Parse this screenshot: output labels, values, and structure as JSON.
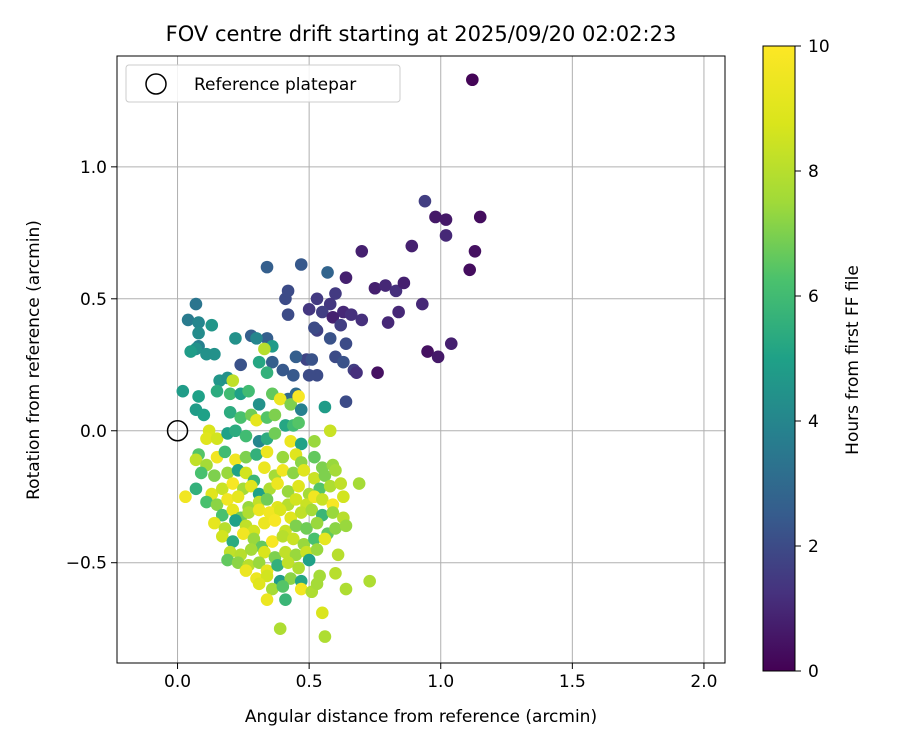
{
  "chart_data": {
    "type": "scatter",
    "title": "FOV centre drift starting at 2025/09/20 02:02:23",
    "xlabel": "Angular distance from reference (arcmin)",
    "ylabel": "Rotation from reference (arcmin)",
    "xlim": [
      -0.23,
      2.08
    ],
    "ylim": [
      -0.88,
      1.42
    ],
    "xticks": [
      0.0,
      0.5,
      1.0,
      1.5,
      2.0
    ],
    "xtick_labels": [
      "0.0",
      "0.5",
      "1.0",
      "1.5",
      "2.0"
    ],
    "yticks": [
      -0.5,
      0.0,
      0.5,
      1.0
    ],
    "ytick_labels": [
      "−0.5",
      "0.0",
      "0.5",
      "1.0"
    ],
    "grid": true,
    "legend": {
      "position": "upper-left",
      "entries": [
        {
          "label": "Reference platepar",
          "marker": "open-circle",
          "x": 0.0,
          "y": 0.0
        }
      ]
    },
    "colorbar": {
      "label": "Hours from first FF file",
      "min": 0,
      "max": 10,
      "ticks": [
        0,
        2,
        4,
        6,
        8,
        10
      ],
      "tick_labels": [
        "0",
        "2",
        "4",
        "6",
        "8",
        "10"
      ],
      "colormap": "viridis"
    },
    "points": [
      [
        1.12,
        1.33,
        0.1
      ],
      [
        1.15,
        0.81,
        0.3
      ],
      [
        0.98,
        0.81,
        0.6
      ],
      [
        1.02,
        0.8,
        0.6
      ],
      [
        0.94,
        0.87,
        1.6
      ],
      [
        1.02,
        0.74,
        1.0
      ],
      [
        1.13,
        0.68,
        0.4
      ],
      [
        0.7,
        0.68,
        0.8
      ],
      [
        0.89,
        0.7,
        0.8
      ],
      [
        1.11,
        0.61,
        0.3
      ],
      [
        0.64,
        0.58,
        0.8
      ],
      [
        0.57,
        0.6,
        2.8
      ],
      [
        0.47,
        0.63,
        2.4
      ],
      [
        0.34,
        0.62,
        2.6
      ],
      [
        0.75,
        0.54,
        0.8
      ],
      [
        0.79,
        0.55,
        1.0
      ],
      [
        0.83,
        0.53,
        1.2
      ],
      [
        0.86,
        0.56,
        0.8
      ],
      [
        0.93,
        0.48,
        1.0
      ],
      [
        0.6,
        0.52,
        1.5
      ],
      [
        0.53,
        0.5,
        1.5
      ],
      [
        0.41,
        0.5,
        2.0
      ],
      [
        0.42,
        0.53,
        2.0
      ],
      [
        0.58,
        0.48,
        1.4
      ],
      [
        0.63,
        0.45,
        1.0
      ],
      [
        0.66,
        0.44,
        1.2
      ],
      [
        0.55,
        0.45,
        1.6
      ],
      [
        0.5,
        0.46,
        1.4
      ],
      [
        0.59,
        0.43,
        0.8
      ],
      [
        0.7,
        0.42,
        1.2
      ],
      [
        0.84,
        0.45,
        1.0
      ],
      [
        0.8,
        0.41,
        1.0
      ],
      [
        0.62,
        0.4,
        1.6
      ],
      [
        0.42,
        0.44,
        2.0
      ],
      [
        0.53,
        0.38,
        1.7
      ],
      [
        0.52,
        0.39,
        2.0
      ],
      [
        0.58,
        0.35,
        2.2
      ],
      [
        0.64,
        0.33,
        2.0
      ],
      [
        0.95,
        0.3,
        0.4
      ],
      [
        0.99,
        0.28,
        0.6
      ],
      [
        1.04,
        0.33,
        0.8
      ],
      [
        0.76,
        0.22,
        0.4
      ],
      [
        0.67,
        0.23,
        1.6
      ],
      [
        0.68,
        0.22,
        1.2
      ],
      [
        0.6,
        0.28,
        2.0
      ],
      [
        0.63,
        0.26,
        2.2
      ],
      [
        0.53,
        0.21,
        2.0
      ],
      [
        0.5,
        0.21,
        2.0
      ],
      [
        0.49,
        0.27,
        1.8
      ],
      [
        0.51,
        0.27,
        2.2
      ],
      [
        0.45,
        0.28,
        2.6
      ],
      [
        0.4,
        0.23,
        2.4
      ],
      [
        0.36,
        0.26,
        2.6
      ],
      [
        0.34,
        0.35,
        2.6
      ],
      [
        0.28,
        0.36,
        2.6
      ],
      [
        0.24,
        0.25,
        2.2
      ],
      [
        0.64,
        0.11,
        2.0
      ],
      [
        0.56,
        0.09,
        4.8
      ],
      [
        0.44,
        0.21,
        2.4
      ],
      [
        0.45,
        0.14,
        3.0
      ],
      [
        0.42,
        0.12,
        3.0
      ],
      [
        0.07,
        0.48,
        3.4
      ],
      [
        0.04,
        0.42,
        3.6
      ],
      [
        0.08,
        0.41,
        4.0
      ],
      [
        0.08,
        0.37,
        4.2
      ],
      [
        0.13,
        0.4,
        4.6
      ],
      [
        0.08,
        0.32,
        3.8
      ],
      [
        0.07,
        0.31,
        4.4
      ],
      [
        0.11,
        0.29,
        4.4
      ],
      [
        0.14,
        0.29,
        4.4
      ],
      [
        0.05,
        0.3,
        4.8
      ],
      [
        0.22,
        0.35,
        4.4
      ],
      [
        0.3,
        0.35,
        4.0
      ],
      [
        0.36,
        0.32,
        4.8
      ],
      [
        0.31,
        0.26,
        5.2
      ],
      [
        0.33,
        0.31,
        8.0
      ],
      [
        0.34,
        0.22,
        5.6
      ],
      [
        0.02,
        0.15,
        4.8
      ],
      [
        0.08,
        0.13,
        5.0
      ],
      [
        0.16,
        0.19,
        4.6
      ],
      [
        0.19,
        0.2,
        4.4
      ],
      [
        0.21,
        0.19,
        8.2
      ],
      [
        0.15,
        0.15,
        5.4
      ],
      [
        0.2,
        0.14,
        6.0
      ],
      [
        0.24,
        0.14,
        5.0
      ],
      [
        0.27,
        0.15,
        6.0
      ],
      [
        0.31,
        0.1,
        4.4
      ],
      [
        0.36,
        0.14,
        6.6
      ],
      [
        0.39,
        0.12,
        9.4
      ],
      [
        0.43,
        0.1,
        7.0
      ],
      [
        0.46,
        0.13,
        9.8
      ],
      [
        0.47,
        0.08,
        3.8
      ],
      [
        0.07,
        0.08,
        4.8
      ],
      [
        0.1,
        0.06,
        5.0
      ],
      [
        0.2,
        0.07,
        5.4
      ],
      [
        0.24,
        0.05,
        6.2
      ],
      [
        0.28,
        0.06,
        6.8
      ],
      [
        0.3,
        0.04,
        9.2
      ],
      [
        0.34,
        0.05,
        6.4
      ],
      [
        0.37,
        0.06,
        7.0
      ],
      [
        0.41,
        0.02,
        5.2
      ],
      [
        0.44,
        0.02,
        6.0
      ],
      [
        0.46,
        0.03,
        6.4
      ],
      [
        0.12,
        0.0,
        8.8
      ],
      [
        0.11,
        -0.03,
        9.0
      ],
      [
        0.15,
        -0.03,
        8.6
      ],
      [
        0.19,
        -0.01,
        5.0
      ],
      [
        0.22,
        0.0,
        5.4
      ],
      [
        0.26,
        -0.02,
        6.0
      ],
      [
        0.31,
        -0.04,
        4.0
      ],
      [
        0.34,
        -0.03,
        5.4
      ],
      [
        0.37,
        -0.01,
        6.8
      ],
      [
        0.43,
        -0.04,
        9.4
      ],
      [
        0.47,
        -0.05,
        5.0
      ],
      [
        0.52,
        -0.04,
        7.4
      ],
      [
        0.58,
        0.0,
        8.4
      ],
      [
        0.08,
        -0.09,
        6.4
      ],
      [
        0.07,
        -0.11,
        8.2
      ],
      [
        0.11,
        -0.13,
        7.6
      ],
      [
        0.15,
        -0.1,
        9.6
      ],
      [
        0.18,
        -0.08,
        6.0
      ],
      [
        0.22,
        -0.11,
        9.6
      ],
      [
        0.26,
        -0.1,
        7.0
      ],
      [
        0.3,
        -0.09,
        5.6
      ],
      [
        0.34,
        -0.08,
        9.4
      ],
      [
        0.4,
        -0.1,
        7.4
      ],
      [
        0.45,
        -0.09,
        9.0
      ],
      [
        0.47,
        -0.12,
        7.2
      ],
      [
        0.52,
        -0.1,
        6.6
      ],
      [
        0.55,
        -0.14,
        7.0
      ],
      [
        0.59,
        -0.13,
        7.4
      ],
      [
        0.09,
        -0.16,
        6.2
      ],
      [
        0.14,
        -0.17,
        7.0
      ],
      [
        0.19,
        -0.16,
        7.4
      ],
      [
        0.23,
        -0.15,
        5.0
      ],
      [
        0.26,
        -0.16,
        8.6
      ],
      [
        0.29,
        -0.19,
        5.8
      ],
      [
        0.33,
        -0.14,
        9.4
      ],
      [
        0.37,
        -0.17,
        7.6
      ],
      [
        0.4,
        -0.15,
        9.6
      ],
      [
        0.44,
        -0.16,
        7.2
      ],
      [
        0.48,
        -0.15,
        9.0
      ],
      [
        0.52,
        -0.18,
        8.4
      ],
      [
        0.56,
        -0.17,
        7.0
      ],
      [
        0.6,
        -0.15,
        7.6
      ],
      [
        0.07,
        -0.22,
        5.6
      ],
      [
        0.13,
        -0.24,
        9.0
      ],
      [
        0.17,
        -0.22,
        8.4
      ],
      [
        0.21,
        -0.2,
        9.8
      ],
      [
        0.25,
        -0.22,
        7.6
      ],
      [
        0.28,
        -0.21,
        9.0
      ],
      [
        0.31,
        -0.24,
        5.0
      ],
      [
        0.35,
        -0.22,
        7.8
      ],
      [
        0.38,
        -0.2,
        9.4
      ],
      [
        0.42,
        -0.23,
        7.4
      ],
      [
        0.46,
        -0.21,
        9.0
      ],
      [
        0.5,
        -0.24,
        7.6
      ],
      [
        0.54,
        -0.22,
        6.4
      ],
      [
        0.58,
        -0.21,
        7.8
      ],
      [
        0.62,
        -0.2,
        8.2
      ],
      [
        0.69,
        -0.2,
        7.6
      ],
      [
        0.03,
        -0.25,
        9.6
      ],
      [
        0.11,
        -0.27,
        6.2
      ],
      [
        0.15,
        -0.28,
        7.2
      ],
      [
        0.19,
        -0.26,
        9.6
      ],
      [
        0.23,
        -0.25,
        9.2
      ],
      [
        0.27,
        -0.29,
        7.4
      ],
      [
        0.31,
        -0.27,
        8.2
      ],
      [
        0.34,
        -0.26,
        6.8
      ],
      [
        0.38,
        -0.29,
        9.0
      ],
      [
        0.42,
        -0.28,
        8.0
      ],
      [
        0.45,
        -0.26,
        8.6
      ],
      [
        0.49,
        -0.28,
        8.4
      ],
      [
        0.52,
        -0.25,
        9.6
      ],
      [
        0.55,
        -0.26,
        8.4
      ],
      [
        0.59,
        -0.28,
        9.8
      ],
      [
        0.63,
        -0.25,
        8.6
      ],
      [
        0.17,
        -0.32,
        6.2
      ],
      [
        0.21,
        -0.3,
        9.2
      ],
      [
        0.24,
        -0.33,
        6.8
      ],
      [
        0.27,
        -0.31,
        7.8
      ],
      [
        0.31,
        -0.3,
        9.4
      ],
      [
        0.35,
        -0.31,
        9.6
      ],
      [
        0.39,
        -0.3,
        8.8
      ],
      [
        0.43,
        -0.33,
        9.0
      ],
      [
        0.47,
        -0.31,
        8.2
      ],
      [
        0.51,
        -0.3,
        7.6
      ],
      [
        0.55,
        -0.32,
        5.8
      ],
      [
        0.59,
        -0.31,
        7.4
      ],
      [
        0.63,
        -0.33,
        8.0
      ],
      [
        0.14,
        -0.35,
        9.2
      ],
      [
        0.18,
        -0.37,
        8.0
      ],
      [
        0.22,
        -0.34,
        5.0
      ],
      [
        0.26,
        -0.36,
        8.2
      ],
      [
        0.29,
        -0.38,
        8.6
      ],
      [
        0.33,
        -0.35,
        9.4
      ],
      [
        0.37,
        -0.34,
        9.8
      ],
      [
        0.41,
        -0.38,
        8.4
      ],
      [
        0.45,
        -0.36,
        7.0
      ],
      [
        0.49,
        -0.37,
        6.8
      ],
      [
        0.53,
        -0.35,
        7.4
      ],
      [
        0.57,
        -0.39,
        6.6
      ],
      [
        0.6,
        -0.37,
        7.2
      ],
      [
        0.64,
        -0.36,
        7.4
      ],
      [
        0.17,
        -0.4,
        8.6
      ],
      [
        0.21,
        -0.42,
        5.4
      ],
      [
        0.25,
        -0.39,
        9.6
      ],
      [
        0.29,
        -0.41,
        7.4
      ],
      [
        0.32,
        -0.44,
        6.6
      ],
      [
        0.36,
        -0.42,
        9.8
      ],
      [
        0.4,
        -0.4,
        8.0
      ],
      [
        0.44,
        -0.41,
        8.4
      ],
      [
        0.48,
        -0.43,
        7.4
      ],
      [
        0.52,
        -0.41,
        6.2
      ],
      [
        0.56,
        -0.41,
        9.2
      ],
      [
        0.2,
        -0.46,
        8.2
      ],
      [
        0.24,
        -0.47,
        8.0
      ],
      [
        0.28,
        -0.45,
        7.6
      ],
      [
        0.33,
        -0.46,
        8.8
      ],
      [
        0.37,
        -0.48,
        7.0
      ],
      [
        0.41,
        -0.46,
        8.2
      ],
      [
        0.45,
        -0.47,
        7.4
      ],
      [
        0.49,
        -0.46,
        8.4
      ],
      [
        0.53,
        -0.45,
        7.4
      ],
      [
        0.61,
        -0.47,
        8.0
      ],
      [
        0.19,
        -0.49,
        6.6
      ],
      [
        0.23,
        -0.5,
        7.2
      ],
      [
        0.27,
        -0.51,
        8.0
      ],
      [
        0.31,
        -0.5,
        7.4
      ],
      [
        0.34,
        -0.53,
        9.2
      ],
      [
        0.38,
        -0.51,
        5.6
      ],
      [
        0.42,
        -0.5,
        8.2
      ],
      [
        0.46,
        -0.52,
        7.8
      ],
      [
        0.5,
        -0.49,
        5.0
      ],
      [
        0.26,
        -0.53,
        9.4
      ],
      [
        0.3,
        -0.56,
        9.4
      ],
      [
        0.34,
        -0.55,
        8.6
      ],
      [
        0.39,
        -0.57,
        4.8
      ],
      [
        0.43,
        -0.56,
        7.2
      ],
      [
        0.47,
        -0.57,
        5.2
      ],
      [
        0.54,
        -0.55,
        7.6
      ],
      [
        0.6,
        -0.54,
        8.0
      ],
      [
        0.31,
        -0.58,
        9.0
      ],
      [
        0.36,
        -0.6,
        7.6
      ],
      [
        0.4,
        -0.59,
        6.4
      ],
      [
        0.47,
        -0.6,
        9.6
      ],
      [
        0.51,
        -0.61,
        7.8
      ],
      [
        0.64,
        -0.6,
        7.8
      ],
      [
        0.73,
        -0.57,
        7.8
      ],
      [
        0.34,
        -0.64,
        9.4
      ],
      [
        0.41,
        -0.64,
        5.8
      ],
      [
        0.53,
        -0.58,
        7.6
      ],
      [
        0.39,
        -0.75,
        7.8
      ],
      [
        0.55,
        -0.69,
        8.8
      ],
      [
        0.56,
        -0.78,
        7.8
      ]
    ]
  }
}
